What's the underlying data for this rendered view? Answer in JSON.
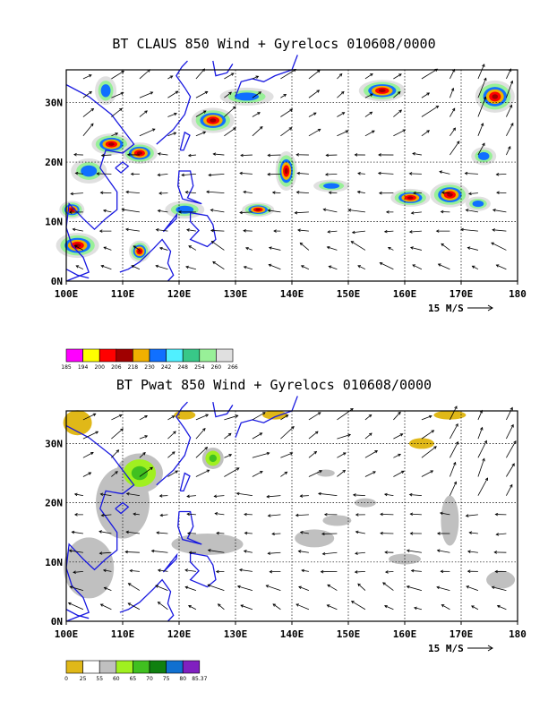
{
  "panels": [
    {
      "title": "BT CLAUS 850 Wind + Gyrelocs 010608/0000",
      "colorbar": {
        "labels": [
          "185",
          "194",
          "200",
          "206",
          "218",
          "230",
          "242",
          "248",
          "254",
          "260",
          "266"
        ],
        "colors": [
          "#ff00ff",
          "#ffff00",
          "#ff0000",
          "#a00000",
          "#f0b000",
          "#1070ff",
          "#50f0ff",
          "#38c888",
          "#98f098",
          "#e0e0e0"
        ]
      }
    },
    {
      "title": "BT Pwat 850 Wind + Gyrelocs 010608/0000",
      "colorbar": {
        "labels": [
          "0",
          "25",
          "55",
          "60",
          "65",
          "70",
          "75",
          "80",
          "85.37"
        ],
        "colors": [
          "#e0b818",
          "#ffffff",
          "#c0c0c0",
          "#a0f020",
          "#40c020",
          "#108010",
          "#1070d0",
          "#8020c0"
        ]
      }
    }
  ],
  "axes": {
    "x_ticks": [
      "100E",
      "110E",
      "120E",
      "130E",
      "140E",
      "150E",
      "160E",
      "170E",
      "180"
    ],
    "y_ticks": [
      "0N",
      "10N",
      "20N",
      "30N"
    ],
    "scale_label": "15 M/S"
  },
  "colors": {
    "coast": "#1818e0",
    "frame": "#000000",
    "grid": "#000000"
  }
}
